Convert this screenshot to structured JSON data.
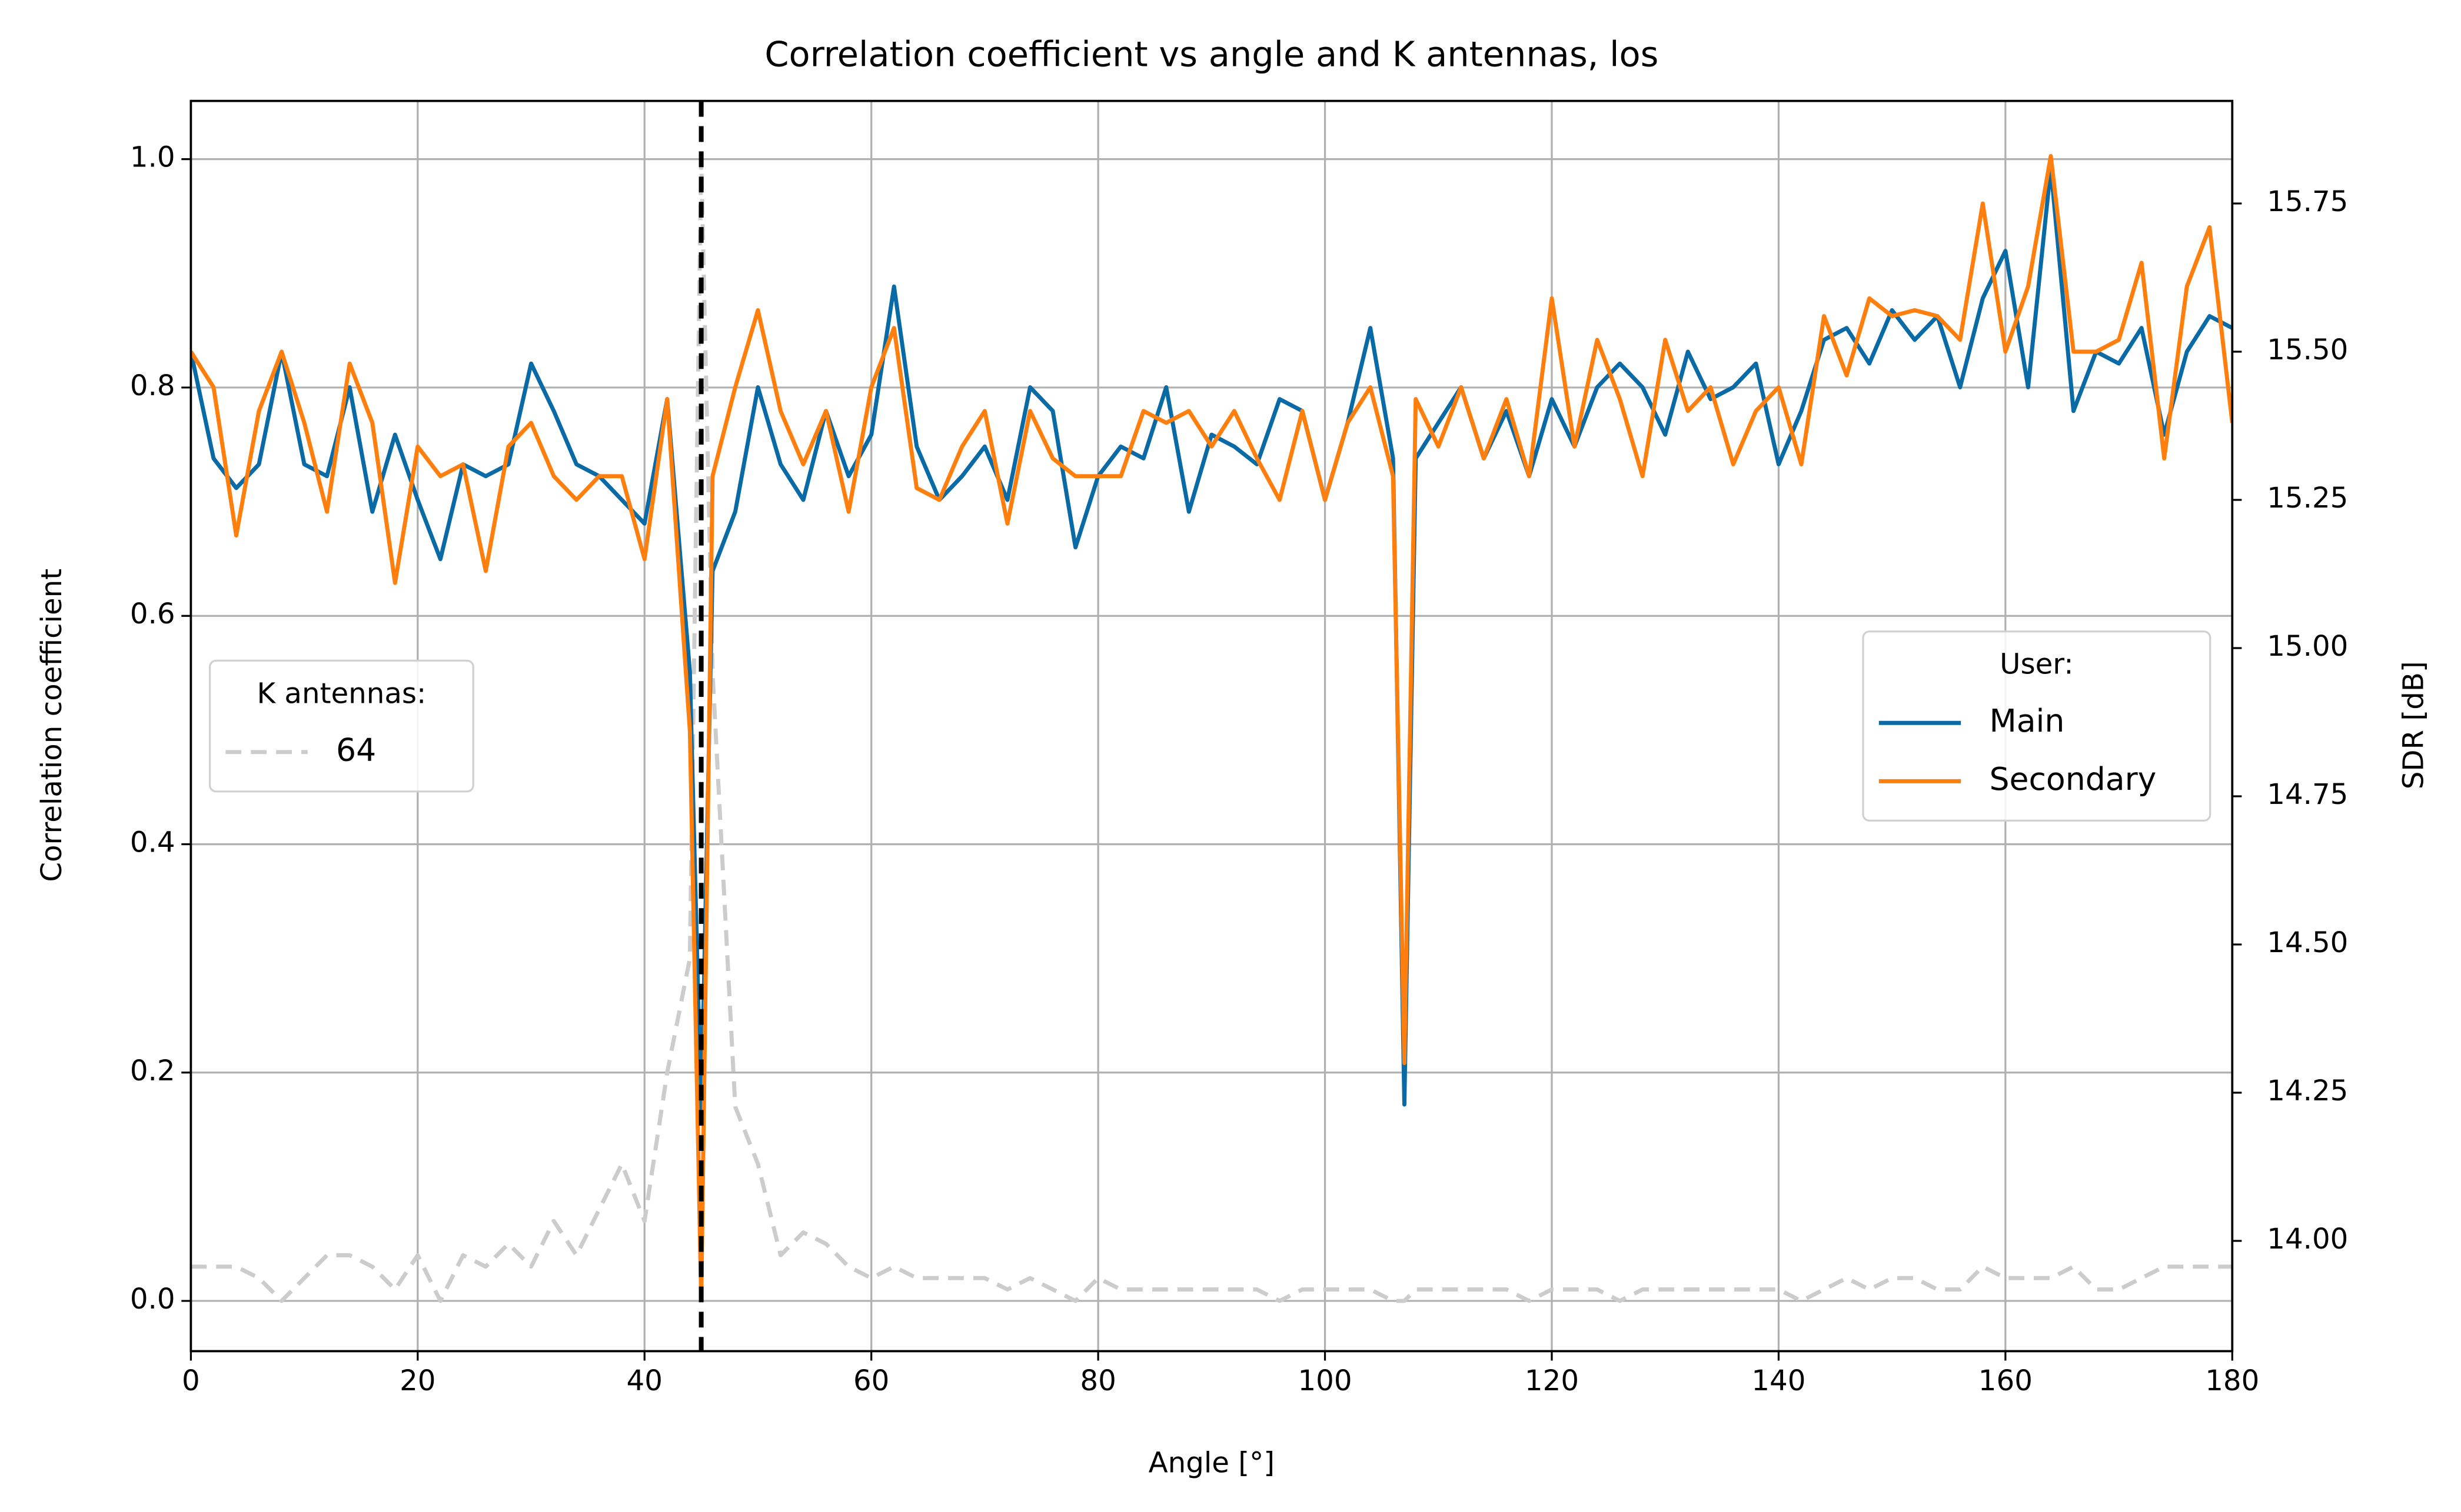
{
  "chart_data": {
    "type": "line",
    "title": "Correlation coefficient vs angle and K antennas, los",
    "x_label": "Angle [°]",
    "y_label": "Correlation coefficient",
    "y2_label": "SDR [dB]",
    "xlim": [
      0,
      180
    ],
    "xticks": [
      0,
      20,
      40,
      60,
      80,
      100,
      120,
      140,
      160,
      180
    ],
    "ylim": [
      -0.044,
      1.051
    ],
    "yticks": [
      {
        "value": 0,
        "label": "0.0"
      },
      {
        "value": 0.2,
        "label": "0.2"
      },
      {
        "value": 0.4,
        "label": "0.4"
      },
      {
        "value": 0.6,
        "label": "0.6"
      },
      {
        "value": 0.8,
        "label": "0.8"
      },
      {
        "value": 1,
        "label": "1.0"
      }
    ],
    "y2lim": [
      13.814,
      15.923
    ],
    "y2ticks": [
      {
        "value": 14,
        "label": "14.00"
      },
      14.25,
      {
        "value": 14.5,
        "label": "14.50"
      },
      14.75,
      {
        "value": 15,
        "label": "15.00"
      },
      15.25,
      {
        "value": 15.5,
        "label": "15.50"
      },
      15.75
    ],
    "grid": true,
    "vline": {
      "x": 45,
      "color": "#000000"
    },
    "legends": [
      {
        "title": "K antennas:",
        "loc": "center left"
      },
      {
        "title": "User:",
        "loc": "center right"
      }
    ],
    "x": [
      0,
      2,
      4,
      6,
      8,
      10,
      12,
      14,
      16,
      18,
      20,
      22,
      24,
      26,
      28,
      30,
      32,
      34,
      36,
      38,
      40,
      42,
      44,
      45,
      46,
      48,
      50,
      52,
      54,
      56,
      58,
      60,
      62,
      64,
      66,
      68,
      70,
      72,
      74,
      76,
      78,
      80,
      82,
      84,
      86,
      88,
      90,
      92,
      94,
      96,
      98,
      100,
      102,
      104,
      106,
      107,
      108,
      110,
      112,
      114,
      116,
      118,
      120,
      122,
      124,
      126,
      128,
      130,
      132,
      134,
      136,
      138,
      140,
      142,
      144,
      146,
      148,
      150,
      152,
      154,
      156,
      158,
      160,
      162,
      164,
      166,
      168,
      170,
      172,
      174,
      176,
      178,
      180
    ],
    "series": [
      {
        "name": "64",
        "color": "#cccccc",
        "dashed": true,
        "axis": "y",
        "legend": 0,
        "values": [
          0.03,
          0.03,
          0.03,
          0.02,
          0.0,
          0.02,
          0.04,
          0.04,
          0.03,
          0.01,
          0.04,
          0.0,
          0.04,
          0.03,
          0.05,
          0.03,
          0.07,
          0.04,
          0.08,
          0.12,
          0.07,
          0.2,
          0.3,
          1.0,
          0.55,
          0.17,
          0.12,
          0.04,
          0.06,
          0.05,
          0.03,
          0.02,
          0.03,
          0.02,
          0.02,
          0.02,
          0.02,
          0.01,
          0.02,
          0.01,
          0.0,
          0.02,
          0.01,
          0.01,
          0.01,
          0.01,
          0.01,
          0.01,
          0.01,
          0.0,
          0.01,
          0.01,
          0.01,
          0.01,
          0.0,
          0.0,
          0.01,
          0.01,
          0.01,
          0.01,
          0.01,
          0.0,
          0.01,
          0.01,
          0.01,
          0.0,
          0.01,
          0.01,
          0.01,
          0.01,
          0.01,
          0.01,
          0.01,
          0.0,
          0.01,
          0.02,
          0.01,
          0.02,
          0.02,
          0.01,
          0.01,
          0.03,
          0.02,
          0.02,
          0.02,
          0.03,
          0.01,
          0.01,
          0.02,
          0.03,
          0.03,
          0.03,
          0.03
        ]
      },
      {
        "name": "Main",
        "color": "#0a6aa6",
        "dashed": false,
        "axis": "y2",
        "legend": 1,
        "values": [
          15.5,
          15.32,
          15.27,
          15.31,
          15.5,
          15.31,
          15.29,
          15.44,
          15.23,
          15.36,
          15.25,
          15.15,
          15.31,
          15.29,
          15.31,
          15.48,
          15.4,
          15.31,
          15.29,
          15.25,
          15.21,
          15.42,
          14.96,
          14.21,
          15.13,
          15.23,
          15.44,
          15.31,
          15.25,
          15.4,
          15.29,
          15.36,
          15.61,
          15.34,
          15.25,
          15.29,
          15.34,
          15.25,
          15.44,
          15.4,
          15.17,
          15.29,
          15.34,
          15.32,
          15.44,
          15.23,
          15.36,
          15.34,
          15.31,
          15.42,
          15.4,
          15.25,
          15.38,
          15.54,
          15.32,
          14.23,
          15.32,
          15.38,
          15.44,
          15.32,
          15.4,
          15.29,
          15.42,
          15.34,
          15.44,
          15.48,
          15.44,
          15.36,
          15.5,
          15.42,
          15.44,
          15.48,
          15.31,
          15.4,
          15.52,
          15.54,
          15.48,
          15.57,
          15.52,
          15.56,
          15.44,
          15.59,
          15.67,
          15.44,
          15.81,
          15.4,
          15.5,
          15.48,
          15.54,
          15.36,
          15.5,
          15.56,
          15.54
        ]
      },
      {
        "name": "Secondary",
        "color": "#ff7f0e",
        "dashed": false,
        "axis": "y2",
        "legend": 1,
        "values": [
          15.5,
          15.44,
          15.19,
          15.4,
          15.5,
          15.38,
          15.23,
          15.48,
          15.38,
          15.11,
          15.34,
          15.29,
          15.31,
          15.13,
          15.34,
          15.38,
          15.29,
          15.25,
          15.29,
          15.29,
          15.15,
          15.42,
          14.86,
          13.9,
          15.29,
          15.44,
          15.57,
          15.4,
          15.31,
          15.4,
          15.23,
          15.44,
          15.54,
          15.27,
          15.25,
          15.34,
          15.4,
          15.21,
          15.4,
          15.32,
          15.29,
          15.29,
          15.29,
          15.4,
          15.38,
          15.4,
          15.34,
          15.4,
          15.32,
          15.25,
          15.4,
          15.25,
          15.38,
          15.44,
          15.29,
          14.3,
          15.42,
          15.34,
          15.44,
          15.32,
          15.42,
          15.29,
          15.59,
          15.34,
          15.52,
          15.42,
          15.29,
          15.52,
          15.4,
          15.44,
          15.31,
          15.4,
          15.44,
          15.31,
          15.56,
          15.46,
          15.59,
          15.56,
          15.57,
          15.56,
          15.52,
          15.75,
          15.5,
          15.61,
          15.83,
          15.5,
          15.5,
          15.52,
          15.65,
          15.32,
          15.61,
          15.71,
          15.38
        ]
      }
    ]
  }
}
